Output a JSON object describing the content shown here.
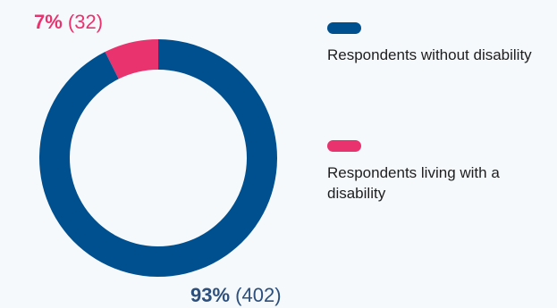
{
  "colors": {
    "without": "#00508f",
    "disability": "#e8336e",
    "count_dark": "#2c4f7c",
    "count_pink": "#e8336e"
  },
  "chart_data": {
    "type": "pie",
    "subtype": "donut",
    "categories": [
      "Respondents without disability",
      "Respondents living with a disability"
    ],
    "values": [
      402,
      32
    ],
    "percentages": [
      93,
      7
    ],
    "labels": {
      "without": {
        "pct": "93%",
        "count": "(402)"
      },
      "disability": {
        "pct": "7%",
        "count": "(32)"
      }
    },
    "legend": [
      {
        "key": "without",
        "label": "Respondents without disability"
      },
      {
        "key": "disability",
        "label": "Respondents living with a disability"
      }
    ],
    "legend_position": "right"
  }
}
